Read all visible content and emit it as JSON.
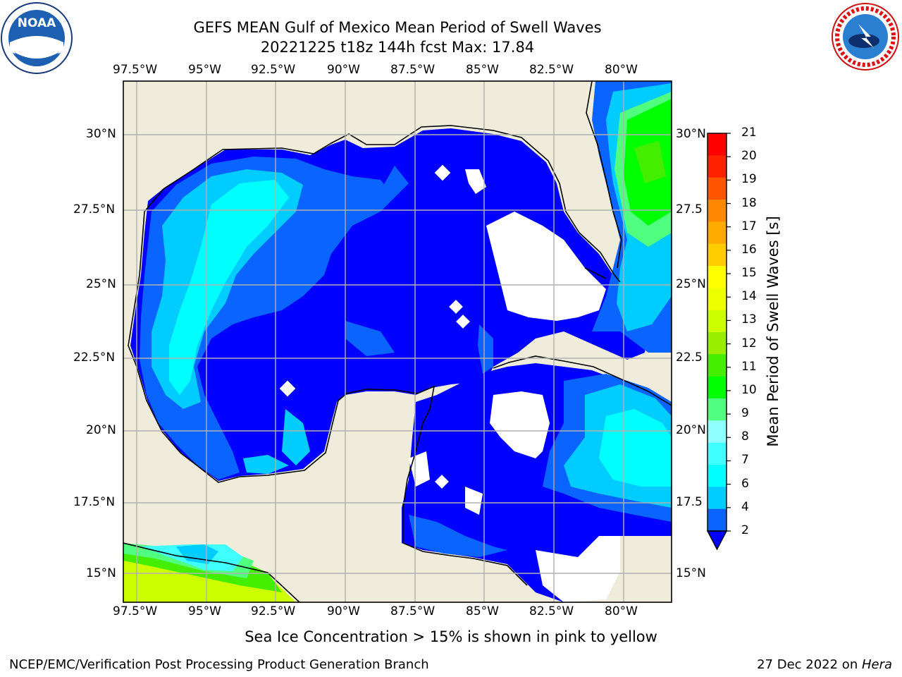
{
  "title": {
    "line1": "GEFS MEAN Gulf of Mexico Mean Period of Swell Waves",
    "line2": "20221225 t18z 144h fcst   Max: 17.84"
  },
  "map": {
    "lon_ticks_top": [
      "97.5°W",
      "95°W",
      "92.5°W",
      "90°W",
      "87.5°W",
      "85°W",
      "82.5°W",
      "80°W"
    ],
    "lon_ticks_bottom": [
      "97.5°W",
      "95°W",
      "92.5°W",
      "90°W",
      "87.5°W",
      "85°W",
      "82.5°W",
      "80°W"
    ],
    "lat_ticks_left": [
      "30°N",
      "27.5°N",
      "25°N",
      "22.5°N",
      "20°N",
      "17.5°N",
      "15°N"
    ],
    "lat_ticks_right": [
      "30°N",
      "27.5",
      "25°N",
      "22.5",
      "20°N",
      "17.5",
      "15°N"
    ],
    "colors": {
      "land": "#efecdc",
      "no_data": "#ffffff",
      "grid": "#b0b0b0"
    }
  },
  "colorbar": {
    "label": "Mean Period of Swell Waves [s]",
    "ticks": [
      "2",
      "4",
      "6",
      "7",
      "8",
      "9",
      "10",
      "11",
      "12",
      "13",
      "14",
      "15",
      "16",
      "17",
      "18",
      "19",
      "20",
      "21"
    ],
    "colors": [
      "#0000ff",
      "#0a64ff",
      "#00ccff",
      "#00ffff",
      "#40ffff",
      "#90ffff",
      "#50ff80",
      "#00ff00",
      "#44ee00",
      "#99ee00",
      "#ccff00",
      "#eeff00",
      "#ffff00",
      "#ffcc00",
      "#ffaa00",
      "#ff8800",
      "#ff5500",
      "#ff2200",
      "#ff0000"
    ]
  },
  "caption": "Sea Ice Concentration > 15% is shown in pink to yellow",
  "footer": {
    "left": "NCEP/EMC/Verification Post Processing Product Generation Branch",
    "right_prefix": "27 Dec 2022 on ",
    "right_host": "Hera"
  },
  "logos": {
    "noaa": "NOAA",
    "nws": "NATIONAL WEATHER SERVICE"
  }
}
